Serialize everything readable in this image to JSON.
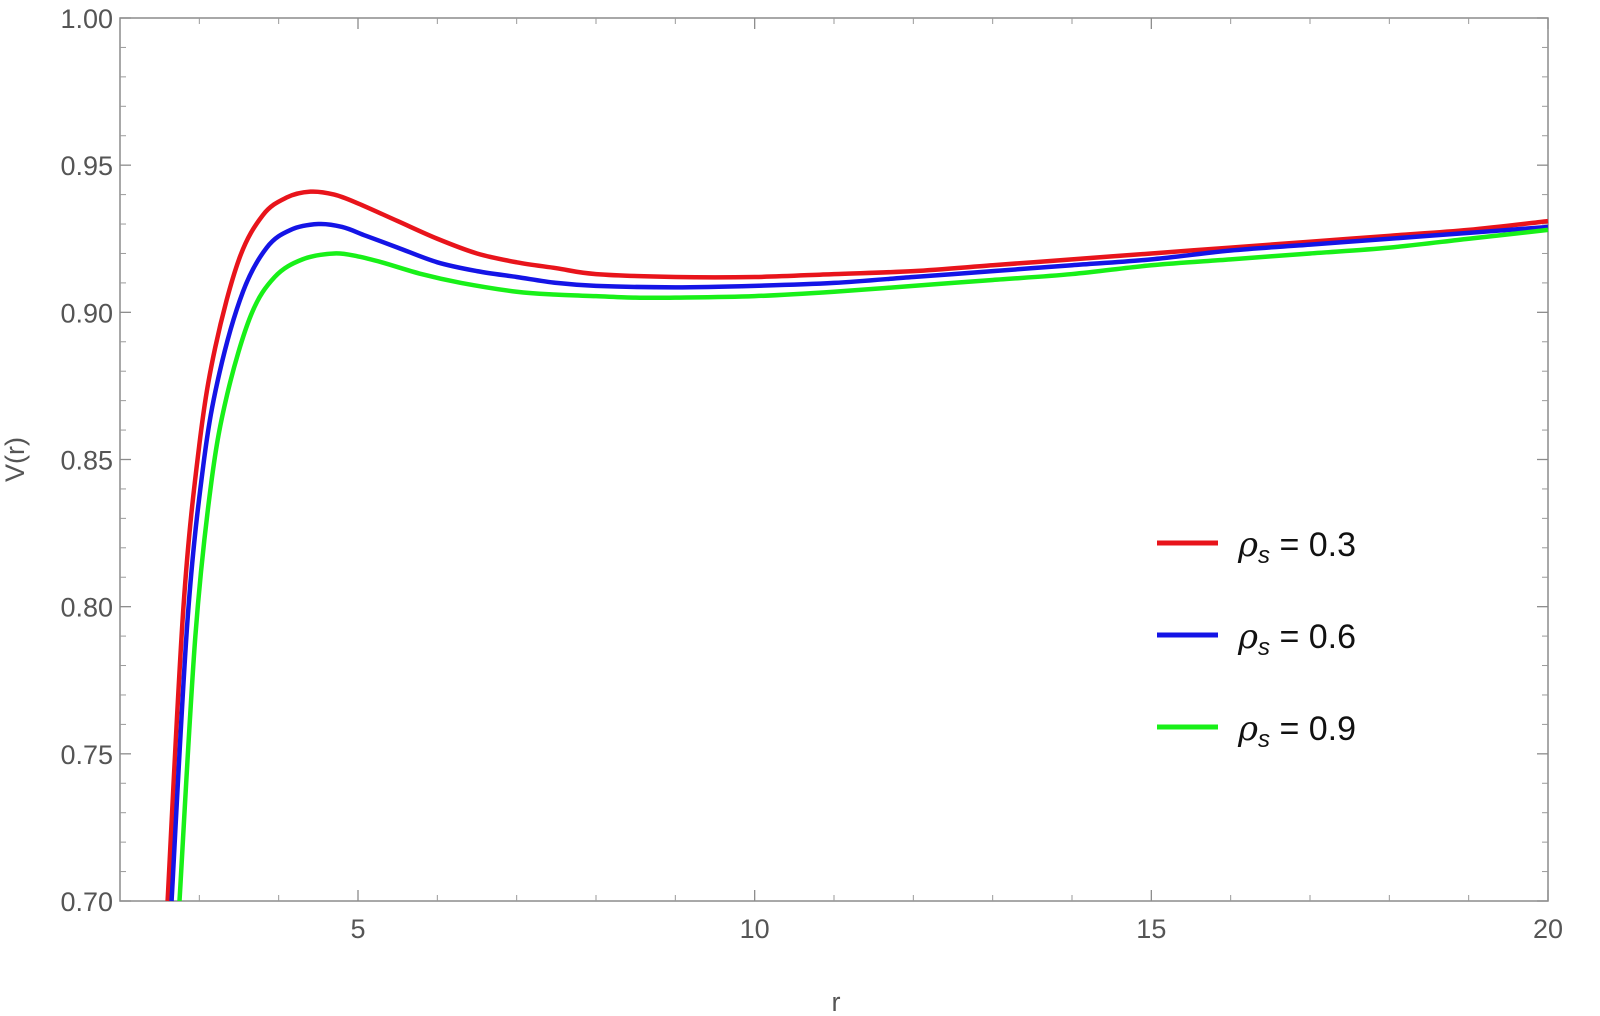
{
  "chart_data": {
    "type": "line",
    "xlabel": "r",
    "ylabel": "V(r)",
    "xlim": [
      2.0,
      20.0
    ],
    "ylim": [
      0.7,
      1.0
    ],
    "x_ticks": [
      {
        "value": 5,
        "label": "5"
      },
      {
        "value": 10,
        "label": "10"
      },
      {
        "value": 15,
        "label": "15"
      },
      {
        "value": 20,
        "label": "20"
      }
    ],
    "y_ticks": [
      {
        "value": 0.7,
        "label": "0.70"
      },
      {
        "value": 0.75,
        "label": "0.75"
      },
      {
        "value": 0.8,
        "label": "0.80"
      },
      {
        "value": 0.85,
        "label": "0.85"
      },
      {
        "value": 0.9,
        "label": "0.90"
      },
      {
        "value": 0.95,
        "label": "0.95"
      },
      {
        "value": 1.0,
        "label": "1.00"
      }
    ],
    "grid": false,
    "legend_position": "right",
    "series": [
      {
        "name": "ρs = 0.3",
        "symbol": "ρ",
        "subscript": "s",
        "value_text": " = 0.3",
        "color": "#e8141b",
        "x": [
          2.6,
          2.8,
          3.0,
          3.2,
          3.5,
          3.8,
          4.1,
          4.4,
          4.7,
          5.0,
          5.5,
          6.0,
          6.5,
          7.0,
          7.5,
          8.0,
          9.0,
          10.0,
          11.0,
          12.0,
          13.0,
          14.0,
          15.0,
          16.0,
          17.0,
          18.0,
          19.0,
          20.0
        ],
        "y": [
          0.7,
          0.8,
          0.855,
          0.888,
          0.918,
          0.933,
          0.939,
          0.941,
          0.94,
          0.937,
          0.931,
          0.925,
          0.92,
          0.917,
          0.915,
          0.913,
          0.912,
          0.912,
          0.913,
          0.914,
          0.916,
          0.918,
          0.92,
          0.922,
          0.924,
          0.926,
          0.928,
          0.931
        ]
      },
      {
        "name": "ρs = 0.6",
        "symbol": "ρ",
        "subscript": "s",
        "value_text": " = 0.6",
        "color": "#1414e6",
        "x": [
          2.65,
          2.85,
          3.05,
          3.25,
          3.55,
          3.85,
          4.15,
          4.5,
          4.8,
          5.1,
          5.5,
          6.0,
          6.5,
          7.0,
          7.5,
          8.0,
          9.0,
          10.0,
          11.0,
          12.0,
          13.0,
          14.0,
          15.0,
          16.0,
          17.0,
          18.0,
          19.0,
          20.0
        ],
        "y": [
          0.7,
          0.795,
          0.848,
          0.879,
          0.907,
          0.922,
          0.928,
          0.93,
          0.929,
          0.926,
          0.922,
          0.917,
          0.914,
          0.912,
          0.91,
          0.909,
          0.9085,
          0.909,
          0.91,
          0.912,
          0.914,
          0.916,
          0.918,
          0.921,
          0.923,
          0.925,
          0.927,
          0.929
        ]
      },
      {
        "name": "ρs = 0.9",
        "symbol": "ρ",
        "subscript": "s",
        "value_text": " = 0.9",
        "color": "#18f018",
        "x": [
          2.75,
          2.95,
          3.15,
          3.35,
          3.65,
          3.95,
          4.3,
          4.7,
          5.0,
          5.3,
          5.8,
          6.3,
          7.0,
          7.5,
          8.0,
          8.5,
          9.0,
          10.0,
          11.0,
          12.0,
          13.0,
          14.0,
          15.0,
          16.0,
          17.0,
          18.0,
          19.0,
          20.0
        ],
        "y": [
          0.7,
          0.79,
          0.842,
          0.872,
          0.899,
          0.912,
          0.918,
          0.92,
          0.919,
          0.917,
          0.913,
          0.91,
          0.907,
          0.906,
          0.9055,
          0.905,
          0.905,
          0.9055,
          0.907,
          0.909,
          0.911,
          0.913,
          0.916,
          0.918,
          0.92,
          0.922,
          0.925,
          0.928
        ]
      }
    ]
  }
}
